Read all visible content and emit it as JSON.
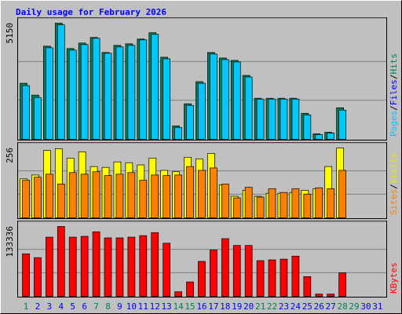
{
  "chart_data": [
    {
      "type": "bar",
      "title": "Daily usage for February 2026",
      "ylim": [
        0,
        5150
      ],
      "yticks": [
        5150
      ],
      "legend": [
        {
          "text": "Pages",
          "color": "#00c8ff"
        },
        {
          "text": "/",
          "color": "#000000"
        },
        {
          "text": "Files",
          "color": "#0000ff"
        },
        {
          "text": "/",
          "color": "#000000"
        },
        {
          "text": "Hits",
          "color": "#00805c"
        }
      ],
      "series": [
        {
          "name": "Hits",
          "color": "#00805c",
          "values": [
            2485,
            1960,
            4130,
            5150,
            4025,
            4270,
            4515,
            3850,
            4165,
            4235,
            4445,
            4725,
            3640,
            595,
            1575,
            2555,
            3850,
            3605,
            3500,
            2835,
            1820,
            1820,
            1820,
            1820,
            1155,
            245,
            315,
            1400,
            null,
            null,
            null
          ]
        },
        {
          "name": "Pages",
          "color": "#00c8ff",
          "values": [
            2380,
            1855,
            4060,
            5075,
            3955,
            4200,
            4480,
            3815,
            4095,
            4165,
            4410,
            4655,
            3570,
            525,
            1505,
            2485,
            3780,
            3535,
            3430,
            2765,
            1785,
            1785,
            1785,
            1785,
            1085,
            210,
            280,
            1295,
            null,
            null,
            null
          ]
        }
      ]
    },
    {
      "type": "bar",
      "ylim": [
        0,
        256
      ],
      "yticks": [
        256
      ],
      "legend": [
        {
          "text": "Sites",
          "color": "#ff8000"
        },
        {
          "text": "/",
          "color": "#000000"
        },
        {
          "text": "Visits",
          "color": "#e8e800"
        }
      ],
      "series": [
        {
          "name": "Visits",
          "color": "#ffff00",
          "values": [
            143,
            157,
            247,
            253,
            219,
            242,
            188,
            185,
            205,
            202,
            194,
            219,
            174,
            169,
            222,
            216,
            236,
            121,
            79,
            101,
            79,
            90,
            90,
            93,
            101,
            107,
            188,
            256,
            null,
            null,
            null
          ]
        },
        {
          "name": "Sites",
          "color": "#ff8000",
          "values": [
            138,
            149,
            160,
            124,
            166,
            160,
            169,
            155,
            160,
            166,
            138,
            157,
            155,
            157,
            188,
            174,
            183,
            124,
            73,
            112,
            76,
            107,
            93,
            107,
            87,
            110,
            107,
            174,
            null,
            null,
            null
          ]
        }
      ]
    },
    {
      "type": "bar",
      "ylim": [
        0,
        133336
      ],
      "yticks": [
        133336
      ],
      "legend": [
        {
          "text": "KBytes",
          "color": "#ff0000"
        }
      ],
      "categories": [
        "1",
        "2",
        "3",
        "4",
        "5",
        "6",
        "7",
        "8",
        "9",
        "10",
        "11",
        "12",
        "13",
        "14",
        "15",
        "16",
        "17",
        "18",
        "19",
        "20",
        "21",
        "22",
        "23",
        "24",
        "25",
        "26",
        "27",
        "28",
        "29",
        "30",
        "31"
      ],
      "category_colors": [
        "#00805c",
        "#0000ff",
        "#0000ff",
        "#0000ff",
        "#0000ff",
        "#0000ff",
        "#00805c",
        "#00805c",
        "#0000ff",
        "#0000ff",
        "#0000ff",
        "#0000ff",
        "#0000ff",
        "#00805c",
        "#00805c",
        "#0000ff",
        "#0000ff",
        "#0000ff",
        "#0000ff",
        "#0000ff",
        "#00805c",
        "#00805c",
        "#0000ff",
        "#0000ff",
        "#0000ff",
        "#0000ff",
        "#0000ff",
        "#00805c",
        "#00805c",
        "#0000ff",
        "#0000ff"
      ],
      "series": [
        {
          "name": "KBytes",
          "color": "#ff0000",
          "values": [
            81150,
            73900,
            113000,
            133336,
            113000,
            114500,
            123200,
            111600,
            111600,
            113000,
            115900,
            121700,
            101400,
            8700,
            27500,
            66700,
            88400,
            110100,
            97100,
            97100,
            68100,
            69600,
            71000,
            76800,
            37700,
            4300,
            4300,
            44900,
            null,
            null,
            null
          ]
        }
      ]
    }
  ]
}
